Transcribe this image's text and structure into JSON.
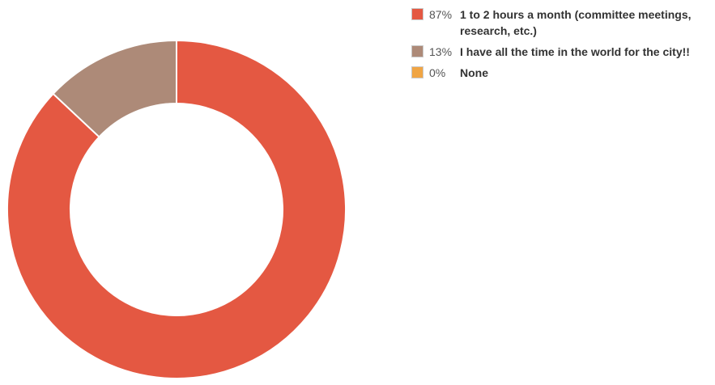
{
  "chart_data": {
    "type": "pie",
    "donut": true,
    "categories": [
      "1 to 2 hours a month (committee meetings, research, etc.)",
      "I have all the time in the world for the city!!",
      "None"
    ],
    "values": [
      87,
      13,
      0
    ],
    "percent_labels": [
      "87%",
      "13%",
      "0%"
    ],
    "colors": [
      "#e45842",
      "#ad8a78",
      "#f0a544"
    ],
    "legend_position": "right"
  }
}
